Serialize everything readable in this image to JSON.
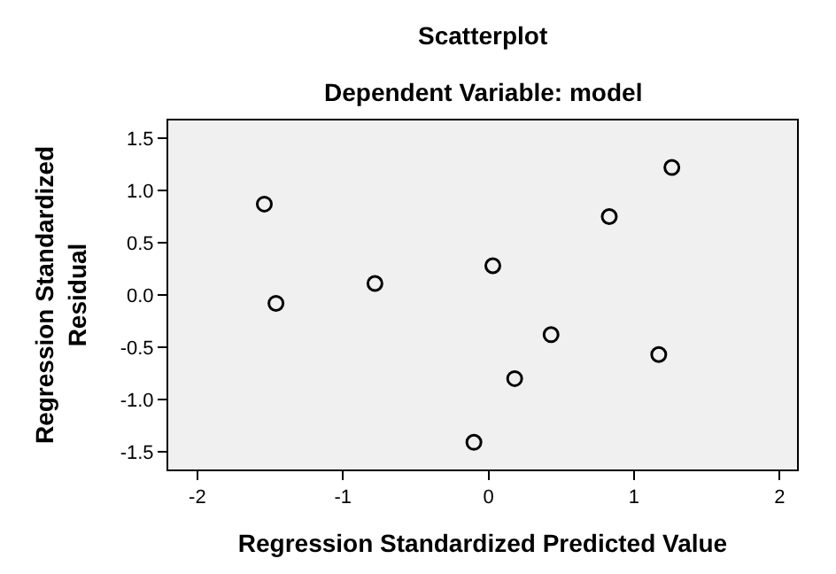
{
  "chart_data": {
    "type": "scatter",
    "title": "Scatterplot",
    "subtitle": "Dependent Variable: model",
    "xlabel": "Regression Standardized Predicted Value",
    "ylabel": "Regression Standardized Residual",
    "x": [
      -1.54,
      -1.46,
      -0.78,
      0.03,
      -0.1,
      0.18,
      0.43,
      0.83,
      1.17,
      1.26
    ],
    "series": [
      {
        "color": "#000000",
        "values": [
          0.87,
          -0.08,
          0.11,
          0.28,
          -1.41,
          -0.8,
          -0.38,
          0.75,
          -0.57,
          1.22
        ]
      }
    ],
    "xlim": [
      -2.2,
      2.12
    ],
    "ylim": [
      -1.67,
      1.67
    ],
    "xticks": [
      -2,
      -1,
      0,
      1,
      2
    ],
    "yticks": [
      {
        "value": -1.5,
        "label": "-1.5"
      },
      {
        "value": -1.0,
        "label": "-1.0"
      },
      {
        "value": -0.5,
        "label": "-0.5"
      },
      {
        "value": 0,
        "label": "0.0"
      },
      {
        "value": 0.5,
        "label": "0.5"
      },
      {
        "value": 1.0,
        "label": "1.0"
      },
      {
        "value": 1.5,
        "label": "1.5"
      }
    ],
    "grid": false,
    "marker": "circle"
  }
}
